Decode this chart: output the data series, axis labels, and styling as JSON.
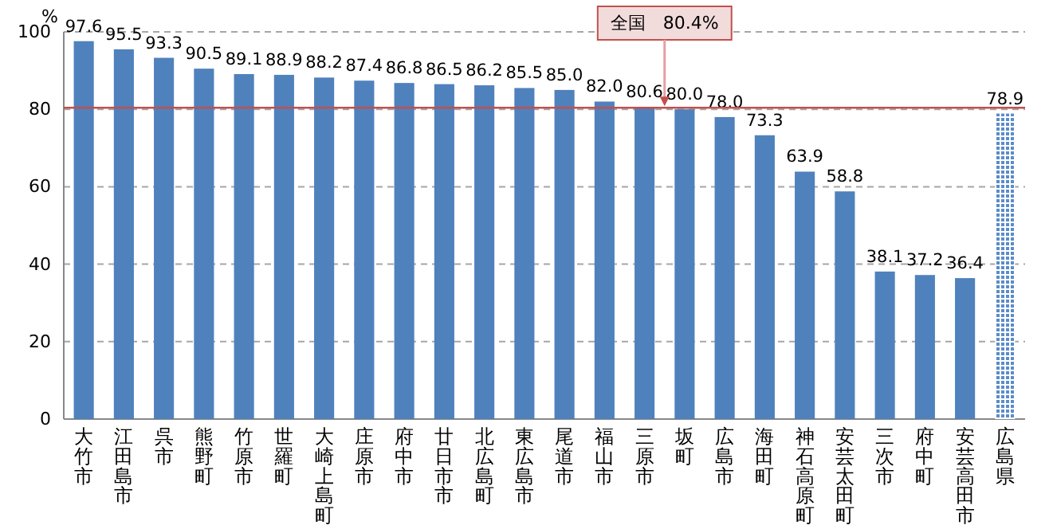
{
  "chart_data": {
    "type": "bar",
    "ylabel": "%",
    "categories": [
      "大竹市",
      "江田島市",
      "呉市",
      "熊野町",
      "竹原市",
      "世羅町",
      "大崎上島町",
      "庄原市",
      "府中市",
      "廿日市市",
      "北広島町",
      "東広島市",
      "尾道市",
      "福山市",
      "三原市",
      "坂町",
      "広島市",
      "海田町",
      "神石高原町",
      "安芸太田町",
      "三次市",
      "府中町",
      "安芸高田市",
      "広島県"
    ],
    "values": [
      97.6,
      95.5,
      93.3,
      90.5,
      89.1,
      88.9,
      88.2,
      87.4,
      86.8,
      86.5,
      86.2,
      85.5,
      85.0,
      82.0,
      80.6,
      80.0,
      78.0,
      73.3,
      63.9,
      58.8,
      38.1,
      37.2,
      36.4,
      78.9
    ],
    "value_labels": [
      "97.6",
      "95.5",
      "93.3",
      "90.5",
      "89.1",
      "88.9",
      "88.2",
      "87.4",
      "86.8",
      "86.5",
      "86.2",
      "85.5",
      "85.0",
      "82.0",
      "80.6",
      "80.0",
      "78.0",
      "73.3",
      "63.9",
      "58.8",
      "38.1",
      "37.2",
      "36.4",
      "78.9"
    ],
    "colors": [
      "#4f81bd",
      "#4f81bd",
      "#4f81bd",
      "#4f81bd",
      "#4f81bd",
      "#4f81bd",
      "#4f81bd",
      "#4f81bd",
      "#4f81bd",
      "#4f81bd",
      "#4f81bd",
      "#4f81bd",
      "#4f81bd",
      "#4f81bd",
      "#4f81bd",
      "#4f81bd",
      "#4f81bd",
      "#4f81bd",
      "#4f81bd",
      "#4f81bd",
      "#4f81bd",
      "#4f81bd",
      "#4f81bd",
      "#5b8cc8"
    ],
    "ylim": [
      0,
      100
    ],
    "yticks": [
      0,
      20,
      40,
      60,
      80,
      100
    ],
    "grid": "y",
    "ref_lines": [
      {
        "axis": "y",
        "value": 80.4,
        "label": "全国　80.4%",
        "color": "#c0504d"
      }
    ]
  }
}
